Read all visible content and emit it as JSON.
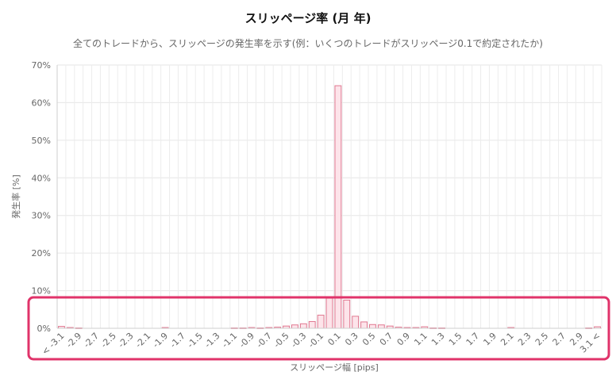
{
  "chart_data": {
    "type": "bar",
    "title": "スリッページ率 (月 年)",
    "subtitle": "全てのトレードから、スリッページの発生率を示す(例：いくつのトレードがスリッページ0.1で約定されたか)",
    "xlabel": "スリッページ幅 [pips]",
    "ylabel": "発生率 [%]",
    "ylim": [
      0,
      70
    ],
    "yticks": [
      "0%",
      "10%",
      "20%",
      "30%",
      "40%",
      "50%",
      "60%",
      "70%"
    ],
    "grid": true,
    "categories": [
      "< -3.1",
      "-3.0",
      "-2.9",
      "-2.8",
      "-2.7",
      "-2.6",
      "-2.5",
      "-2.4",
      "-2.3",
      "-2.2",
      "-2.1",
      "-2.0",
      "-1.9",
      "-1.8",
      "-1.7",
      "-1.6",
      "-1.5",
      "-1.4",
      "-1.3",
      "-1.2",
      "-1.1",
      "-1.0",
      "-0.9",
      "-0.8",
      "-0.7",
      "-0.6",
      "-0.5",
      "-0.4",
      "-0.3",
      "-0.2",
      "-0.1",
      "0.0",
      "0.1",
      "0.2",
      "0.3",
      "0.4",
      "0.5",
      "0.6",
      "0.7",
      "0.8",
      "0.9",
      "1.0",
      "1.1",
      "1.2",
      "1.3",
      "1.4",
      "1.5",
      "1.6",
      "1.7",
      "1.8",
      "1.9",
      "2.0",
      "2.1",
      "2.2",
      "2.3",
      "2.4",
      "2.5",
      "2.6",
      "2.7",
      "2.8",
      "2.9",
      "3.0",
      "3.1 <"
    ],
    "visible_tick_labels": [
      "< -3.1",
      "-2.9",
      "-2.7",
      "-2.5",
      "-2.3",
      "-2.1",
      "-1.9",
      "-1.7",
      "-1.5",
      "-1.3",
      "-1.1",
      "-0.9",
      "-0.7",
      "-0.5",
      "-0.3",
      "-0.1",
      "0.1",
      "0.3",
      "0.5",
      "0.7",
      "0.9",
      "1.1",
      "1.3",
      "1.5",
      "1.7",
      "1.9",
      "2.1",
      "2.3",
      "2.5",
      "2.7",
      "2.9",
      "3.1 <"
    ],
    "values": [
      0.5,
      0.2,
      0.1,
      0,
      0,
      0,
      0,
      0,
      0,
      0,
      0,
      0,
      0.2,
      0,
      0,
      0,
      0,
      0,
      0,
      0,
      0.1,
      0.1,
      0.2,
      0.1,
      0.2,
      0.3,
      0.6,
      0.9,
      1.2,
      1.8,
      3.5,
      8.0,
      64.5,
      7.5,
      3.2,
      1.7,
      1.0,
      0.9,
      0.6,
      0.3,
      0.2,
      0.2,
      0.4,
      0.1,
      0.1,
      0,
      0,
      0,
      0,
      0,
      0,
      0,
      0.2,
      0,
      0,
      0,
      0,
      0,
      0,
      0,
      0,
      0.1,
      0.4
    ],
    "bar_color": "#fde4ea",
    "bar_border_color": "#e07890",
    "highlight_color": "#e0336a"
  }
}
